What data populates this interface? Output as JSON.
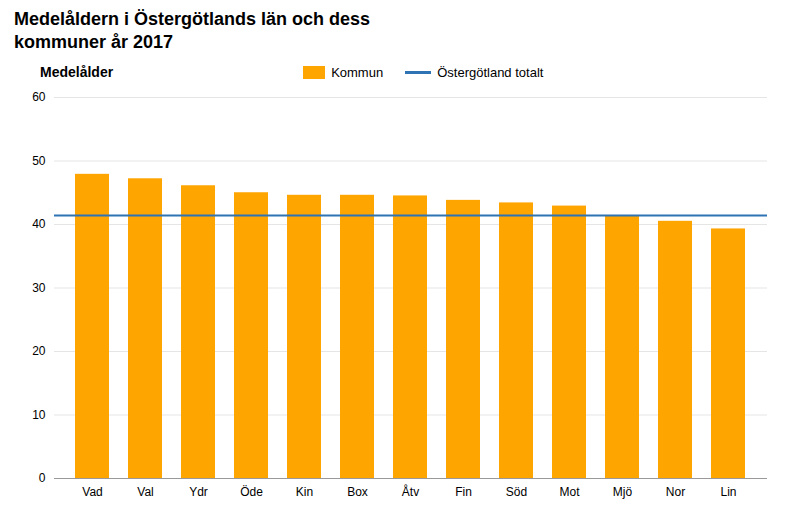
{
  "chart_data": {
    "type": "bar",
    "title": "Medelåldern i Östergötlands län och dess\nkommuner år 2017",
    "ylabel": "Medelålder",
    "categories": [
      "Vad",
      "Val",
      "Ydr",
      "Öde",
      "Kin",
      "Box",
      "Åtv",
      "Fin",
      "Söd",
      "Mot",
      "Mjö",
      "Nor",
      "Lin"
    ],
    "series": [
      {
        "name": "Kommun",
        "type": "bar",
        "color": "#FFA500",
        "values": [
          47.9,
          47.2,
          46.1,
          45.0,
          44.6,
          44.6,
          44.5,
          43.8,
          43.4,
          42.9,
          41.4,
          40.5,
          39.3
        ]
      },
      {
        "name": "Östergötland totalt",
        "type": "rule",
        "color": "#2E74B5",
        "value": 41.4
      }
    ],
    "ylim": [
      0,
      60
    ],
    "yticks": [
      0,
      10,
      20,
      30,
      40,
      50,
      60
    ],
    "grid": true,
    "legend": "top"
  }
}
